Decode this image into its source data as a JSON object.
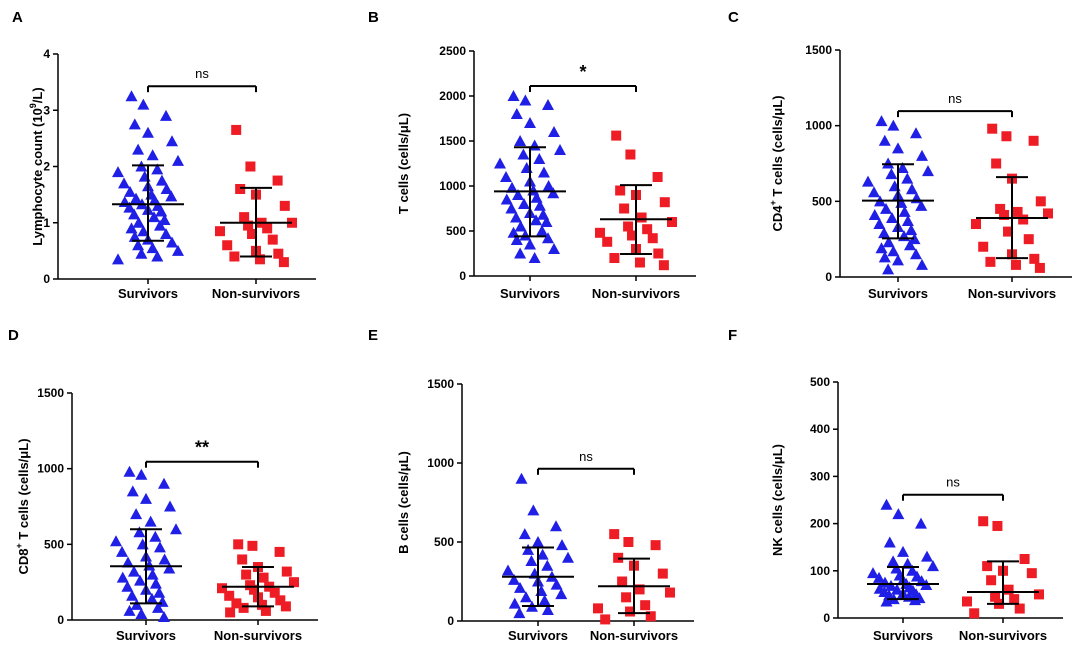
{
  "colors": {
    "survivor": "#1f1fe6",
    "nonsurvivor": "#ee1c24",
    "axis": "#000000"
  },
  "chart_data": [
    {
      "type": "scatter",
      "letter": "A",
      "ylabel_pre": "Lymphocyte count (10",
      "ylabel_sup": "9",
      "ylabel_post": "/L)",
      "ylim": [
        0,
        4
      ],
      "ticks": [
        "0",
        "1",
        "2",
        "3",
        "4"
      ],
      "tick_values": [
        0,
        1,
        2,
        3,
        4
      ],
      "categories": [
        "Survivors",
        "Non-survivors"
      ],
      "significance": "ns",
      "summary": {
        "Survivors": {
          "mean": 1.33,
          "sd_low": 0.68,
          "sd_high": 2.02
        },
        "Non-survivors": {
          "mean": 1.0,
          "sd_low": 0.4,
          "sd_high": 1.62
        }
      },
      "series": [
        {
          "name": "Survivors",
          "marker": "triangle",
          "values": [
            3.25,
            3.1,
            2.9,
            2.75,
            2.6,
            2.45,
            2.3,
            2.2,
            2.1,
            2.0,
            1.95,
            1.9,
            1.82,
            1.75,
            1.7,
            1.65,
            1.6,
            1.55,
            1.5,
            1.47,
            1.43,
            1.4,
            1.37,
            1.33,
            1.3,
            1.27,
            1.23,
            1.2,
            1.15,
            1.1,
            1.05,
            1.0,
            0.95,
            0.9,
            0.85,
            0.8,
            0.75,
            0.7,
            0.65,
            0.6,
            0.55,
            0.5,
            0.45,
            0.4,
            0.35
          ]
        },
        {
          "name": "Non-survivors",
          "marker": "square",
          "values": [
            2.65,
            2.0,
            1.75,
            1.6,
            1.5,
            1.3,
            1.1,
            1.0,
            1.0,
            0.95,
            0.9,
            0.85,
            0.8,
            0.7,
            0.6,
            0.5,
            0.45,
            0.4,
            0.35,
            0.3
          ]
        }
      ]
    },
    {
      "type": "scatter",
      "letter": "B",
      "ylabel_pre": "T cells (cells/μL)",
      "ylabel_sup": "",
      "ylabel_post": "",
      "ylim": [
        0,
        2500
      ],
      "ticks": [
        "0",
        "500",
        "1000",
        "1500",
        "2000",
        "2500"
      ],
      "tick_values": [
        0,
        500,
        1000,
        1500,
        2000,
        2500
      ],
      "categories": [
        "Survivors",
        "Non-survivors"
      ],
      "significance": "*",
      "summary": {
        "Survivors": {
          "mean": 940,
          "sd_low": 440,
          "sd_high": 1430
        },
        "Non-survivors": {
          "mean": 630,
          "sd_low": 245,
          "sd_high": 1010
        }
      },
      "series": [
        {
          "name": "Survivors",
          "marker": "triangle",
          "values": [
            2000,
            1950,
            1900,
            1800,
            1700,
            1600,
            1500,
            1450,
            1400,
            1350,
            1300,
            1250,
            1200,
            1150,
            1100,
            1050,
            1000,
            980,
            950,
            920,
            900,
            870,
            850,
            800,
            780,
            750,
            700,
            680,
            650,
            620,
            600,
            550,
            500,
            480,
            450,
            420,
            400,
            350,
            300,
            250,
            200
          ]
        },
        {
          "name": "Non-survivors",
          "marker": "square",
          "values": [
            1560,
            1350,
            1100,
            950,
            900,
            820,
            750,
            650,
            600,
            550,
            520,
            480,
            450,
            420,
            380,
            300,
            250,
            200,
            150,
            120
          ]
        }
      ]
    },
    {
      "type": "scatter",
      "letter": "C",
      "ylabel_pre": "CD4",
      "ylabel_sup": "+",
      "ylabel_post": " T cells (cells/μL)",
      "ylim": [
        0,
        1500
      ],
      "ticks": [
        "0",
        "500",
        "1000",
        "1500"
      ],
      "tick_values": [
        0,
        500,
        1000,
        1500
      ],
      "categories": [
        "Survivors",
        "Non-survivors"
      ],
      "significance": "ns",
      "summary": {
        "Survivors": {
          "mean": 505,
          "sd_low": 255,
          "sd_high": 745
        },
        "Non-survivors": {
          "mean": 390,
          "sd_low": 125,
          "sd_high": 660
        }
      },
      "series": [
        {
          "name": "Survivors",
          "marker": "triangle",
          "values": [
            1030,
            1000,
            950,
            900,
            850,
            800,
            750,
            720,
            700,
            680,
            650,
            630,
            600,
            580,
            560,
            540,
            520,
            500,
            490,
            470,
            450,
            430,
            410,
            390,
            370,
            350,
            330,
            310,
            290,
            270,
            250,
            230,
            210,
            190,
            170,
            150,
            130,
            110,
            80,
            50
          ]
        },
        {
          "name": "Non-survivors",
          "marker": "square",
          "values": [
            980,
            930,
            900,
            750,
            650,
            500,
            450,
            430,
            420,
            410,
            380,
            350,
            300,
            250,
            200,
            150,
            120,
            100,
            80,
            60
          ]
        }
      ]
    },
    {
      "type": "scatter",
      "letter": "D",
      "ylabel_pre": "CD8",
      "ylabel_sup": "+",
      "ylabel_post": " T cells (cells/μL)",
      "ylim": [
        0,
        1500
      ],
      "ticks": [
        "0",
        "500",
        "1000",
        "1500"
      ],
      "tick_values": [
        0,
        500,
        1000,
        1500
      ],
      "categories": [
        "Survivors",
        "Non-survivors"
      ],
      "significance": "**",
      "summary": {
        "Survivors": {
          "mean": 355,
          "sd_low": 110,
          "sd_high": 600
        },
        "Non-survivors": {
          "mean": 220,
          "sd_low": 90,
          "sd_high": 350
        }
      },
      "series": [
        {
          "name": "Survivors",
          "marker": "triangle",
          "values": [
            980,
            960,
            900,
            850,
            800,
            750,
            700,
            650,
            600,
            580,
            550,
            520,
            500,
            480,
            450,
            420,
            400,
            380,
            360,
            340,
            320,
            300,
            280,
            260,
            240,
            220,
            200,
            180,
            160,
            140,
            120,
            100,
            80,
            60,
            40,
            20
          ]
        },
        {
          "name": "Non-survivors",
          "marker": "square",
          "values": [
            500,
            490,
            450,
            400,
            350,
            320,
            300,
            280,
            250,
            230,
            220,
            210,
            200,
            180,
            160,
            150,
            130,
            110,
            100,
            90,
            80,
            60,
            50
          ]
        }
      ]
    },
    {
      "type": "scatter",
      "letter": "E",
      "ylabel_pre": "B cells (cells/μL)",
      "ylabel_sup": "",
      "ylabel_post": "",
      "ylim": [
        0,
        1500
      ],
      "ticks": [
        "0",
        "500",
        "1000",
        "1500"
      ],
      "tick_values": [
        0,
        500,
        1000,
        1500
      ],
      "categories": [
        "Survivors",
        "Non-survivors"
      ],
      "significance": "ns",
      "summary": {
        "Survivors": {
          "mean": 280,
          "sd_low": 95,
          "sd_high": 465
        },
        "Non-survivors": {
          "mean": 220,
          "sd_low": 50,
          "sd_high": 395
        }
      },
      "series": [
        {
          "name": "Survivors",
          "marker": "triangle",
          "values": [
            900,
            700,
            600,
            550,
            500,
            480,
            450,
            420,
            400,
            380,
            350,
            320,
            300,
            280,
            260,
            250,
            230,
            210,
            190,
            170,
            150,
            130,
            110,
            90,
            70,
            50
          ]
        },
        {
          "name": "Non-survivors",
          "marker": "square",
          "values": [
            550,
            500,
            480,
            400,
            350,
            300,
            250,
            200,
            180,
            150,
            100,
            80,
            60,
            30,
            10
          ]
        }
      ]
    },
    {
      "type": "scatter",
      "letter": "F",
      "ylabel_pre": "NK cells (cells/μL)",
      "ylabel_sup": "",
      "ylabel_post": "",
      "ylim": [
        0,
        500
      ],
      "ticks": [
        "0",
        "100",
        "200",
        "300",
        "400",
        "500"
      ],
      "tick_values": [
        0,
        100,
        200,
        300,
        400,
        500
      ],
      "categories": [
        "Survivors",
        "Non-survivors"
      ],
      "significance": "ns",
      "summary": {
        "Survivors": {
          "mean": 72,
          "sd_low": 40,
          "sd_high": 108
        },
        "Non-survivors": {
          "mean": 55,
          "sd_low": 30,
          "sd_high": 120
        }
      },
      "series": [
        {
          "name": "Survivors",
          "marker": "triangle",
          "values": [
            240,
            220,
            200,
            160,
            140,
            130,
            120,
            115,
            110,
            105,
            100,
            95,
            90,
            88,
            85,
            80,
            78,
            75,
            72,
            70,
            68,
            65,
            62,
            60,
            58,
            55,
            52,
            50,
            48,
            45,
            42,
            40,
            38,
            35
          ]
        },
        {
          "name": "Non-survivors",
          "marker": "square",
          "values": [
            205,
            195,
            125,
            110,
            100,
            95,
            80,
            60,
            50,
            45,
            40,
            35,
            30,
            20,
            10
          ]
        }
      ]
    }
  ]
}
